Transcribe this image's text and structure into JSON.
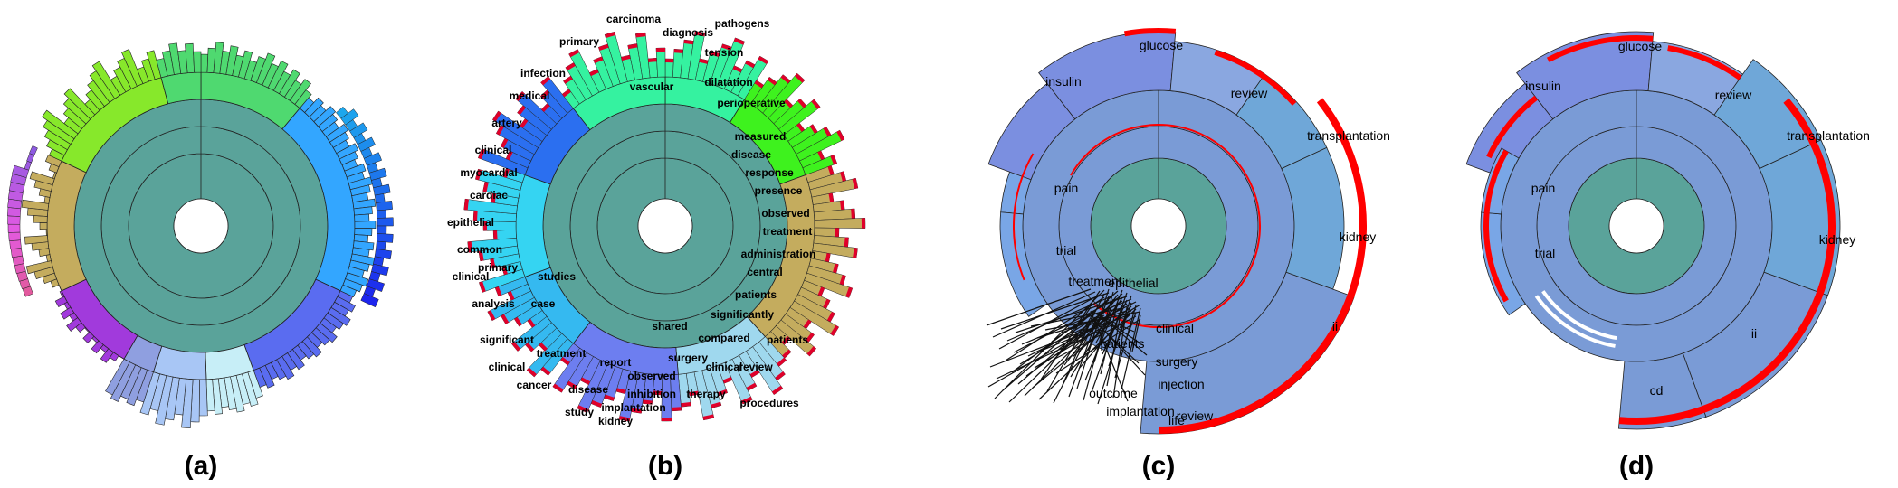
{
  "panels": [
    {
      "id": "a",
      "caption": "(a)"
    },
    {
      "id": "b",
      "caption": "(b)",
      "labels": [
        "pathogens",
        "tension",
        "dilatation",
        "vascular",
        "perioperative",
        "measured",
        "disease",
        "response",
        "presence",
        "observed",
        "treatment",
        "administration",
        "central",
        "patients",
        "significantly",
        "compared",
        "shared",
        "observed",
        "report",
        "treatment",
        "significant",
        "analysis",
        "clinical",
        "common",
        "epithelial",
        "cardiac",
        "myocardial",
        "clinical",
        "artery",
        "medical",
        "infection",
        "primary",
        "carcinoma",
        "diagnosis",
        "therapy",
        "inhibition",
        "disease",
        "cancer",
        "clinical",
        "primary",
        "case",
        "studies",
        "surgery",
        "clinical",
        "review",
        "patients",
        "procedures",
        "implantation",
        "kidney",
        "study"
      ]
    },
    {
      "id": "c",
      "caption": "(c)",
      "labels": [
        "glucose",
        "insulin",
        "review",
        "transplantation",
        "kidney",
        "pain",
        "trial",
        "treatment",
        "ii",
        "epithelial",
        "clinical",
        "patients",
        "surgery",
        "injection",
        "outcome",
        "implantation",
        "review",
        "life"
      ]
    },
    {
      "id": "d",
      "caption": "(d)",
      "labels": [
        "glucose",
        "insulin",
        "review",
        "transplantation",
        "kidney",
        "pain",
        "trial",
        "ii",
        "cd"
      ]
    }
  ]
}
